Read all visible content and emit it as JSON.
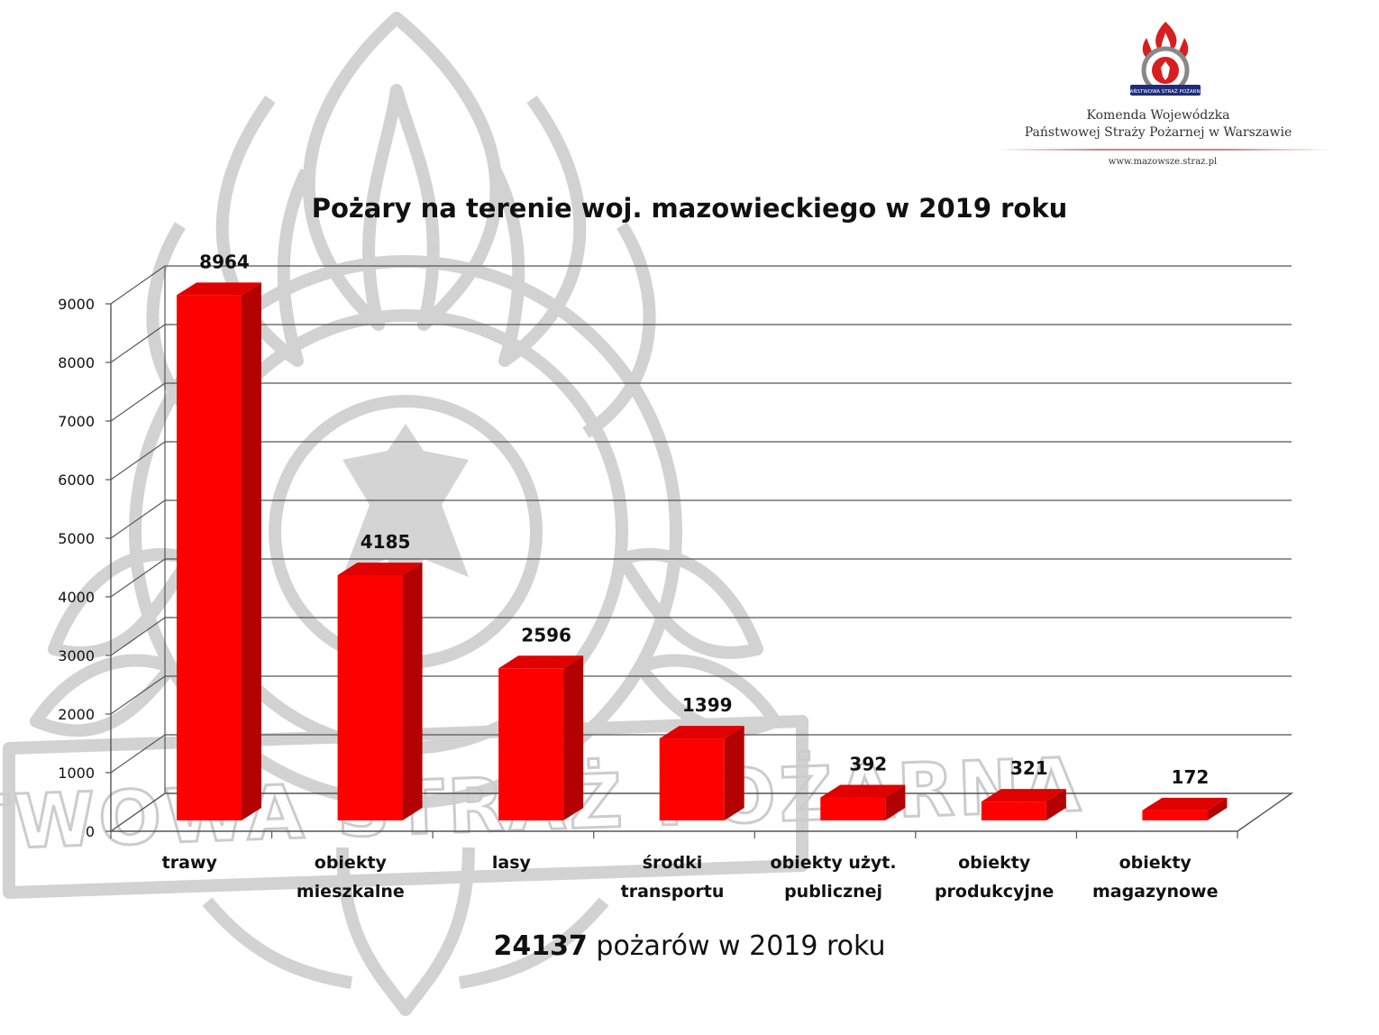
{
  "header": {
    "org_line_1": "Komenda Wojewódzka",
    "org_line_2": "Państwowej Straży Pożarnej w Warszawie",
    "url": "www.mazowsze.straz.pl",
    "logo_text": "PAŃSTWOWA STRAŻ POŻARNA"
  },
  "watermark_text": "PAŃSTWOWA STRAŻ POŻARNA",
  "summary": {
    "number": "24137",
    "text": " pożarów w 2019 roku"
  },
  "colors": {
    "bar_front": "#ff0000",
    "bar_side": "#b30000",
    "bar_top": "#e00000",
    "grid": "#555555",
    "watermark": "#d0d0d0"
  },
  "chart_data": {
    "type": "bar",
    "title": "Pożary na terenie woj. mazowieckiego w 2019 roku",
    "categories": [
      [
        "trawy"
      ],
      [
        "obiekty",
        "mieszkalne"
      ],
      [
        "lasy"
      ],
      [
        "środki",
        "transportu"
      ],
      [
        "obiekty użyt.",
        "publicznej"
      ],
      [
        "obiekty",
        "produkcyjne"
      ],
      [
        "obiekty",
        "magazynowe"
      ]
    ],
    "values": [
      8964,
      4185,
      2596,
      1399,
      392,
      321,
      172
    ],
    "ylim": [
      0,
      9000
    ],
    "yticks": [
      "0",
      "1000",
      "2000",
      "3000",
      "4000",
      "5000",
      "6000",
      "7000",
      "8000",
      "9000"
    ],
    "grid": true,
    "three_d": true
  }
}
